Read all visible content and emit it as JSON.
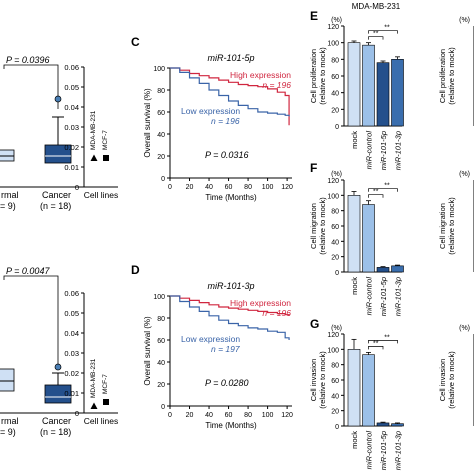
{
  "figure": {
    "panel_letters": {
      "c": "C",
      "d": "D",
      "e": "E",
      "f": "F",
      "g": "G"
    },
    "cell_line_title": "MDA-MB-231",
    "bar_xticks": [
      "mock",
      "miR-control",
      "miR-101-5p",
      "miR-101-3p"
    ],
    "bar_ylabels": [
      "Cell proliferation",
      "Cell migration",
      "Cell invasion"
    ],
    "bar_ylabel_sub": "(relative to mock)",
    "percent_label": "(%)",
    "sig": "**",
    "km_ylabel": "Overall survival (%)",
    "km_xlabel": "Time (Months)",
    "cell_lines_label": "Cell lines",
    "cell_line_ticks": [
      "MDA-MB-231",
      "MCF-7"
    ],
    "group_labels": {
      "normal": "rmal",
      "cancer": "Cancer",
      "normal_n": "= 9)",
      "cancer_n": "(n = 18)"
    }
  },
  "chart_data": [
    {
      "type": "box",
      "panel": "top-left (partial)",
      "categories": [
        "Normal",
        "Cancer"
      ],
      "annotation": "P = 0.0396",
      "summary": [
        {
          "q1": 0.013,
          "median": 0.0155,
          "q3": 0.0185
        },
        {
          "q1": 0.012,
          "median": 0.0155,
          "q3": 0.021,
          "whisker_high": 0.035,
          "outlier": 0.044
        }
      ],
      "ylim": [
        0,
        0.06
      ]
    },
    {
      "type": "scatter",
      "panel": "top cell lines",
      "xlabel": "Cell lines",
      "ylim": [
        0,
        0.06
      ],
      "yticks": [
        0,
        0.01,
        0.02,
        0.03,
        0.04,
        0.05,
        0.06
      ],
      "points": [
        {
          "label": "MDA-MB-231",
          "marker": "triangle",
          "y": 0.0145
        },
        {
          "label": "MCF-7",
          "marker": "square",
          "y": 0.0145
        }
      ]
    },
    {
      "type": "line",
      "panel": "C",
      "title": "miR-101-5p",
      "xlabel": "Time (Months)",
      "ylabel": "Overall survival (%)",
      "xlim": [
        0,
        125
      ],
      "ylim": [
        0,
        100
      ],
      "xticks": [
        0,
        20,
        40,
        60,
        80,
        100,
        120
      ],
      "yticks": [
        0,
        20,
        40,
        60,
        80,
        100
      ],
      "annotation": "P = 0.0316",
      "series": [
        {
          "name": "High expression",
          "n_label": "n = 196",
          "color": "#d0263f",
          "x": [
            0,
            10,
            20,
            30,
            40,
            50,
            60,
            70,
            80,
            90,
            100,
            110,
            118,
            122
          ],
          "y": [
            100,
            98,
            95,
            93,
            91,
            89,
            87,
            85,
            84,
            83,
            81,
            78,
            75,
            48
          ]
        },
        {
          "name": "Low expression",
          "n_label": "n = 196",
          "color": "#3a64a8",
          "x": [
            0,
            10,
            20,
            30,
            40,
            50,
            60,
            70,
            80,
            90,
            100,
            110,
            118,
            122
          ],
          "y": [
            100,
            96,
            91,
            86,
            80,
            75,
            70,
            66,
            63,
            60,
            59,
            58,
            57,
            56
          ]
        }
      ]
    },
    {
      "type": "line",
      "panel": "D",
      "title": "miR-101-3p",
      "xlabel": "Time (Months)",
      "ylabel": "Overall survival (%)",
      "xlim": [
        0,
        125
      ],
      "ylim": [
        0,
        100
      ],
      "xticks": [
        0,
        20,
        40,
        60,
        80,
        100,
        120
      ],
      "yticks": [
        0,
        20,
        40,
        60,
        80,
        100
      ],
      "annotation": "P = 0.0280",
      "series": [
        {
          "name": "High expression",
          "n_label": "n = 196",
          "color": "#d0263f",
          "x": [
            0,
            10,
            20,
            30,
            40,
            50,
            60,
            70,
            80,
            90,
            100,
            110,
            118,
            122
          ],
          "y": [
            100,
            98,
            96,
            94,
            92,
            90,
            89,
            88,
            87,
            86,
            85,
            84,
            83,
            82
          ]
        },
        {
          "name": "Low expression",
          "n_label": "n = 197",
          "color": "#3a64a8",
          "x": [
            0,
            10,
            20,
            30,
            40,
            50,
            60,
            70,
            80,
            90,
            100,
            110,
            118,
            122
          ],
          "y": [
            100,
            95,
            90,
            86,
            82,
            78,
            75,
            73,
            71,
            70,
            68,
            67,
            62,
            60
          ]
        }
      ]
    },
    {
      "type": "bar",
      "panel": "E",
      "title": "MDA-MB-231",
      "categories": [
        "mock",
        "miR-control",
        "miR-101-5p",
        "miR-101-3p"
      ],
      "values": [
        100,
        97,
        76,
        80
      ],
      "errors": [
        2,
        3,
        2,
        3
      ],
      "ylim": [
        0,
        120
      ],
      "yticks": [
        0,
        20,
        40,
        60,
        80,
        100,
        120
      ],
      "ylabel": "Cell proliferation (relative to mock)",
      "colors": [
        "#cfe0f4",
        "#9cc0e8",
        "#24508c",
        "#3a6eae"
      ]
    },
    {
      "type": "bar",
      "panel": "F",
      "categories": [
        "mock",
        "miR-control",
        "miR-101-5p",
        "miR-101-3p"
      ],
      "values": [
        100,
        88,
        6,
        8
      ],
      "errors": [
        5,
        5,
        1,
        1
      ],
      "ylim": [
        0,
        120
      ],
      "yticks": [
        0,
        20,
        40,
        60,
        80,
        100,
        120
      ],
      "ylabel": "Cell migration (relative to mock)",
      "colors": [
        "#cfe0f4",
        "#9cc0e8",
        "#24508c",
        "#3a6eae"
      ]
    },
    {
      "type": "bar",
      "panel": "G",
      "categories": [
        "mock",
        "miR-control",
        "miR-101-5p",
        "miR-101-3p"
      ],
      "values": [
        100,
        93,
        4,
        3
      ],
      "errors": [
        13,
        3,
        1,
        1
      ],
      "ylim": [
        0,
        120
      ],
      "yticks": [
        0,
        20,
        40,
        60,
        80,
        100,
        120
      ],
      "ylabel": "Cell invasion (relative to mock)",
      "colors": [
        "#cfe0f4",
        "#9cc0e8",
        "#24508c",
        "#3a6eae"
      ]
    },
    {
      "type": "box",
      "panel": "bottom-left (partial)",
      "categories": [
        "Normal",
        "Cancer"
      ],
      "annotation": "P = 0.0047",
      "summary": [
        {
          "q1": 0.011,
          "median": 0.016,
          "q3": 0.022,
          "outlier": 0.03
        },
        {
          "q1": 0.005,
          "median": 0.008,
          "q3": 0.014,
          "whisker_high": 0.02,
          "outlier": 0.023
        }
      ],
      "ylim": [
        0,
        0.06
      ]
    },
    {
      "type": "scatter",
      "panel": "bottom cell lines",
      "xlabel": "Cell lines",
      "ylim": [
        0,
        0.06
      ],
      "yticks": [
        0,
        0.01,
        0.02,
        0.03,
        0.04,
        0.05,
        0.06
      ],
      "points": [
        {
          "label": "MDA-MB-231",
          "marker": "triangle",
          "y": 0.0035
        },
        {
          "label": "MCF-7",
          "marker": "square",
          "y": 0.0055
        }
      ]
    }
  ]
}
